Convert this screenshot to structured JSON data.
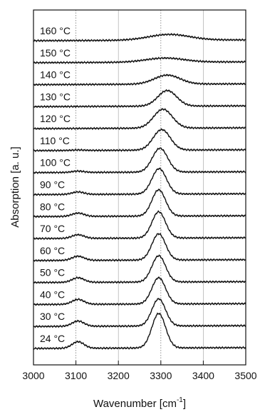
{
  "chart_data": {
    "type": "line",
    "xlabel": "Wavenumber [cm",
    "xlabel_sup": "-1",
    "xlabel_end": "]",
    "ylabel": "Absorption [a. u.]",
    "xlim": [
      3000,
      3500
    ],
    "xticks": [
      "3000",
      "3100",
      "3200",
      "3300",
      "3400",
      "3500"
    ],
    "reference_lines": [
      3100,
      3300
    ],
    "grid_lines": [
      3200,
      3400
    ],
    "series": [
      {
        "name": "160 °C",
        "peak_x": 3320,
        "peak_height": 0.35,
        "peak_width": 48,
        "shoulder_height": 0.0
      },
      {
        "name": "150 °C",
        "peak_x": 3310,
        "peak_height": 0.25,
        "peak_width": 45,
        "shoulder_height": 0.0
      },
      {
        "name": "140 °C",
        "peak_x": 3315,
        "peak_height": 0.55,
        "peak_width": 30,
        "shoulder_height": 0.0
      },
      {
        "name": "130 °C",
        "peak_x": 3315,
        "peak_height": 0.95,
        "peak_width": 22,
        "shoulder_height": 0.0
      },
      {
        "name": "120 °C",
        "peak_x": 3305,
        "peak_height": 1.15,
        "peak_width": 22,
        "shoulder_height": 0.0
      },
      {
        "name": "110 °C",
        "peak_x": 3302,
        "peak_height": 1.25,
        "peak_width": 20,
        "shoulder_height": 0.03
      },
      {
        "name": "100 °C",
        "peak_x": 3298,
        "peak_height": 1.45,
        "peak_width": 18,
        "shoulder_height": 0.08
      },
      {
        "name": "90 °C",
        "peak_x": 3296,
        "peak_height": 1.55,
        "peak_width": 17,
        "shoulder_height": 0.15
      },
      {
        "name": "80 °C",
        "peak_x": 3295,
        "peak_height": 1.6,
        "peak_width": 16,
        "shoulder_height": 0.2
      },
      {
        "name": "70 °C",
        "peak_x": 3295,
        "peak_height": 1.6,
        "peak_width": 16,
        "shoulder_height": 0.22
      },
      {
        "name": "60 °C",
        "peak_x": 3295,
        "peak_height": 1.6,
        "peak_width": 16,
        "shoulder_height": 0.25
      },
      {
        "name": "50 °C",
        "peak_x": 3295,
        "peak_height": 1.6,
        "peak_width": 16,
        "shoulder_height": 0.28
      },
      {
        "name": "40 °C",
        "peak_x": 3295,
        "peak_height": 1.6,
        "peak_width": 16,
        "shoulder_height": 0.3
      },
      {
        "name": "30 °C",
        "peak_x": 3295,
        "peak_height": 1.65,
        "peak_width": 16,
        "shoulder_height": 0.32
      },
      {
        "name": "24 °C",
        "peak_x": 3295,
        "peak_height": 2.1,
        "peak_width": 16,
        "shoulder_height": 0.4
      }
    ]
  }
}
